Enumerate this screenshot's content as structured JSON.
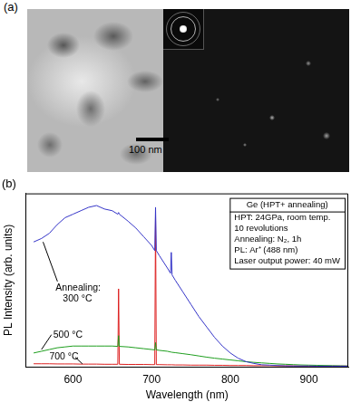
{
  "panel_a": {
    "label": "(a)",
    "scale_bar": "100 nm"
  },
  "chart_data": {
    "type": "line",
    "title": "(b)",
    "x_label": "Wavelength (nm)",
    "y_label": "PL Intensity (arb. units)",
    "x": [
      550,
      560,
      570,
      580,
      590,
      600,
      610,
      620,
      630,
      640,
      650,
      657,
      658,
      659,
      670,
      680,
      690,
      700,
      704,
      705,
      706,
      710,
      720,
      724,
      725,
      726,
      730,
      740,
      750,
      760,
      770,
      780,
      790,
      800,
      810,
      820,
      830,
      840,
      850,
      860,
      870,
      880,
      890,
      900,
      910,
      920,
      930,
      940,
      950
    ],
    "series": [
      {
        "name": "300 °C",
        "color": "#3535c8",
        "values": [
          72,
          74,
          77,
          82,
          86,
          88,
          90,
          92,
          93,
          91,
          90,
          88,
          89,
          88,
          84,
          80,
          75,
          70,
          67,
          92,
          67,
          64,
          57,
          54,
          66,
          53,
          50,
          43,
          36,
          29,
          23,
          17,
          12,
          8,
          5,
          3,
          2,
          1.2,
          1,
          0.8,
          0.6,
          0.5,
          0.5,
          0.5,
          0.4,
          0.4,
          0.4,
          0.4,
          0.4
        ]
      },
      {
        "name": "500 °C",
        "color": "#1e9e1e",
        "values": [
          8,
          9,
          10,
          11,
          11.5,
          12,
          12,
          12,
          12,
          12,
          12,
          11.8,
          18,
          11.8,
          11.5,
          11,
          10.5,
          10,
          9.8,
          14,
          9.8,
          9.5,
          9,
          8.6,
          8.5,
          8.4,
          8.2,
          7.6,
          7,
          6.3,
          5.6,
          5,
          4.5,
          4,
          3.5,
          3,
          2.6,
          2.3,
          2,
          1.7,
          1.5,
          1.3,
          1.1,
          1,
          0.9,
          0.8,
          0.7,
          0.6,
          0.5
        ]
      },
      {
        "name": "700 °C",
        "color": "#dd2020",
        "values": [
          1.8,
          1.8,
          1.8,
          1.7,
          1.7,
          1.7,
          1.6,
          1.6,
          1.6,
          1.5,
          1.5,
          1.5,
          45,
          1.5,
          1.4,
          1.4,
          1.4,
          1.3,
          1.3,
          87,
          1.3,
          1.3,
          1.2,
          1.2,
          1.2,
          1.2,
          1.1,
          1.1,
          1,
          1,
          1,
          0.9,
          0.9,
          0.8,
          0.8,
          0.8,
          0.7,
          0.7,
          0.7,
          0.6,
          0.6,
          0.6,
          0.5,
          0.5,
          0.5,
          0.5,
          0.5,
          0.5,
          0.5
        ]
      }
    ],
    "annotations": [
      "Annealing:"
    ],
    "text_box": [
      "Ge (HPT+ annealing)",
      "HPT: 24GPa, room temp.",
      "10 revolutions",
      "Annealing: N₂, 1h",
      "PL: Ar⁺ (488 nm)",
      "Laser output power: 40 mW"
    ],
    "xlim": [
      540,
      950
    ],
    "xticks": [
      600,
      700,
      800,
      900
    ],
    "ylim": [
      0,
      100
    ],
    "tick_labels": "x",
    "grid": false
  }
}
